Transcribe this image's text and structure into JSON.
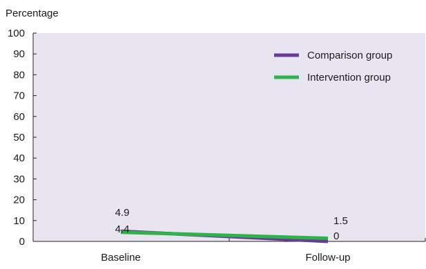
{
  "chart_data": {
    "type": "line",
    "title": "",
    "ylabel": "Percentage",
    "xlabel": "",
    "categories": [
      "Baseline",
      "Follow-up"
    ],
    "ylim": [
      0,
      100
    ],
    "yticks": [
      0,
      10,
      20,
      30,
      40,
      50,
      60,
      70,
      80,
      90,
      100
    ],
    "grid": false,
    "background_color": "#e9e5f0",
    "legend_position": "top-right",
    "series": [
      {
        "name": "Comparison group",
        "color": "#6b3a96",
        "values": [
          4.9,
          0
        ],
        "labels": [
          "4.9",
          "0"
        ]
      },
      {
        "name": "Intervention group",
        "color": "#2db34a",
        "values": [
          4.4,
          1.5
        ],
        "labels": [
          "4.4",
          "1.5"
        ]
      }
    ]
  }
}
